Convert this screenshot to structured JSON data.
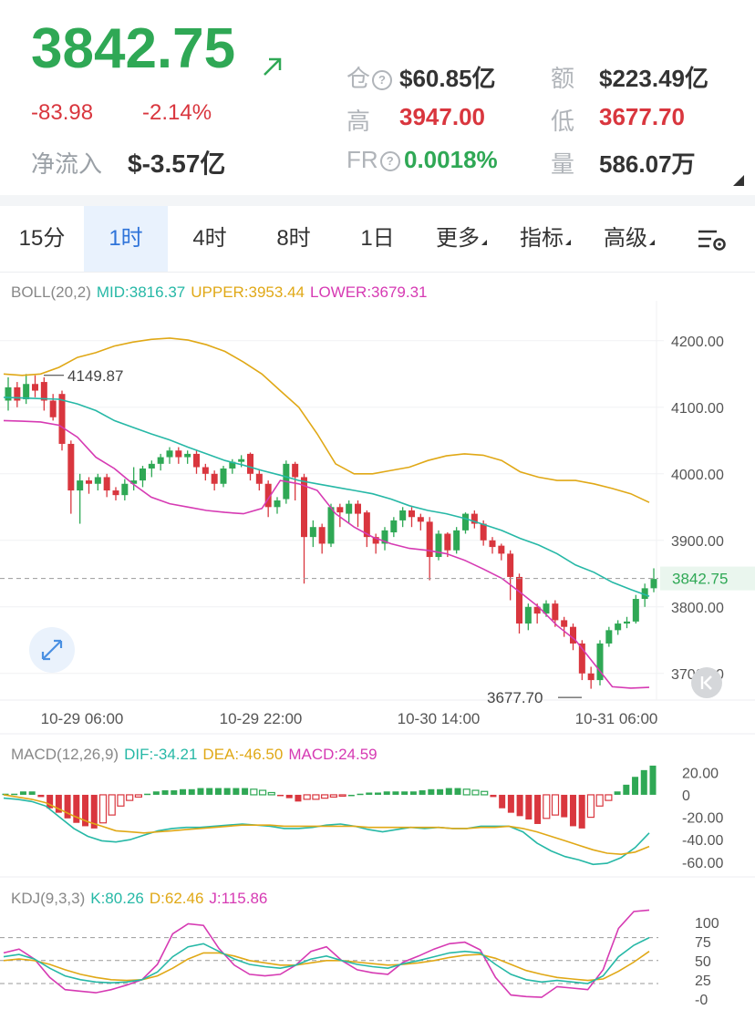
{
  "header": {
    "price": "3842.75",
    "change": "-83.98",
    "change_pct": "-2.14%",
    "net_inflow_label": "净流入",
    "net_inflow_value": "$-3.57亿",
    "stats": {
      "oi_label": "仓",
      "oi_value": "$60.85亿",
      "amount_label": "额",
      "amount_value": "$223.49亿",
      "high_label": "高",
      "high_value": "3947.00",
      "low_label": "低",
      "low_value": "3677.70",
      "fr_label": "FR",
      "fr_value": "0.0018%",
      "volume_label": "量",
      "volume_value": "586.07万"
    },
    "colors": {
      "up": "#2fa855",
      "down": "#d9363e"
    }
  },
  "tabs": [
    {
      "label": "15分"
    },
    {
      "label": "1时",
      "active": true
    },
    {
      "label": "4时"
    },
    {
      "label": "8时"
    },
    {
      "label": "1日"
    },
    {
      "label": "更多"
    },
    {
      "label": "指标"
    },
    {
      "label": "高级"
    }
  ],
  "boll": {
    "name": "BOLL(20,2)",
    "mid": "MID:3816.37",
    "upper": "UPPER:3953.44",
    "lower": "LOWER:3679.31"
  },
  "macd": {
    "name": "MACD(12,26,9)",
    "dif": "DIF:-34.21",
    "dea": "DEA:-46.50",
    "macd": "MACD:24.59"
  },
  "kdj": {
    "name": "KDJ(9,3,3)",
    "k": "K:80.26",
    "d": "D:62.46",
    "j": "J:115.86"
  },
  "chart_data": [
    {
      "type": "candlestick",
      "y_ticks": [
        "4200.00",
        "4100.00",
        "4000.00",
        "3900.00",
        "3800.00",
        "3700.00"
      ],
      "ylim": [
        3660,
        4260
      ],
      "x_ticks": [
        "10-29 06:00",
        "10-29 22:00",
        "10-30 14:00",
        "10-31 06:00"
      ],
      "current_price_label": "3842.75",
      "max_label": "4149.87",
      "min_label": "3677.70",
      "candles": [
        [
          4110,
          4130,
          4095,
          4145
        ],
        [
          4130,
          4110,
          4100,
          4138
        ],
        [
          4112,
          4135,
          4105,
          4150
        ],
        [
          4135,
          4125,
          4115,
          4148
        ],
        [
          4138,
          4110,
          4095,
          4145
        ],
        [
          4110,
          4085,
          4080,
          4120
        ],
        [
          4120,
          4045,
          4035,
          4125
        ],
        [
          4045,
          3975,
          3940,
          4050
        ],
        [
          3975,
          3990,
          3925,
          4000
        ],
        [
          3990,
          3985,
          3970,
          3995
        ],
        [
          3985,
          3995,
          3975,
          4000
        ],
        [
          3995,
          3975,
          3965,
          4000
        ],
        [
          3975,
          3968,
          3960,
          3980
        ],
        [
          3968,
          3985,
          3960,
          3992
        ],
        [
          3985,
          3990,
          3975,
          4010
        ],
        [
          3990,
          4008,
          3980,
          4012
        ],
        [
          4008,
          4015,
          3995,
          4020
        ],
        [
          4015,
          4025,
          4005,
          4030
        ],
        [
          4025,
          4035,
          4015,
          4040
        ],
        [
          4035,
          4025,
          4015,
          4040
        ],
        [
          4025,
          4030,
          4015,
          4035
        ],
        [
          4030,
          4010,
          4000,
          4035
        ],
        [
          4010,
          4000,
          3990,
          4015
        ],
        [
          4000,
          3985,
          3975,
          4005
        ],
        [
          3985,
          4008,
          3980,
          4012
        ],
        [
          4008,
          4018,
          4000,
          4022
        ],
        [
          4018,
          4022,
          4010,
          4028
        ],
        [
          4030,
          4000,
          3990,
          4032
        ],
        [
          4000,
          3985,
          3975,
          4005
        ],
        [
          3985,
          3950,
          3935,
          3990
        ],
        [
          3950,
          3960,
          3940,
          3965
        ],
        [
          3962,
          4015,
          3955,
          4020
        ],
        [
          4015,
          3995,
          3960,
          4018
        ],
        [
          3995,
          3905,
          3835,
          4000
        ],
        [
          3905,
          3920,
          3890,
          3930
        ],
        [
          3920,
          3895,
          3880,
          3925
        ],
        [
          3895,
          3950,
          3890,
          3955
        ],
        [
          3950,
          3942,
          3920,
          3955
        ],
        [
          3940,
          3955,
          3925,
          3960
        ],
        [
          3955,
          3940,
          3920,
          3960
        ],
        [
          3942,
          3905,
          3890,
          3945
        ],
        [
          3905,
          3895,
          3880,
          3910
        ],
        [
          3895,
          3915,
          3885,
          3920
        ],
        [
          3912,
          3930,
          3905,
          3935
        ],
        [
          3930,
          3945,
          3920,
          3950
        ],
        [
          3945,
          3935,
          3920,
          3950
        ],
        [
          3935,
          3928,
          3915,
          3940
        ],
        [
          3928,
          3875,
          3840,
          3935
        ],
        [
          3875,
          3910,
          3870,
          3915
        ],
        [
          3910,
          3885,
          3875,
          3912
        ],
        [
          3885,
          3915,
          3880,
          3920
        ],
        [
          3915,
          3940,
          3910,
          3942
        ],
        [
          3940,
          3925,
          3918,
          3945
        ],
        [
          3925,
          3900,
          3892,
          3930
        ],
        [
          3900,
          3890,
          3880,
          3905
        ],
        [
          3892,
          3880,
          3870,
          3895
        ],
        [
          3880,
          3845,
          3810,
          3885
        ],
        [
          3845,
          3775,
          3760,
          3850
        ],
        [
          3775,
          3800,
          3765,
          3805
        ],
        [
          3800,
          3790,
          3775,
          3805
        ],
        [
          3790,
          3805,
          3785,
          3810
        ],
        [
          3805,
          3780,
          3770,
          3810
        ],
        [
          3780,
          3770,
          3755,
          3785
        ],
        [
          3770,
          3745,
          3735,
          3775
        ],
        [
          3745,
          3700,
          3690,
          3750
        ],
        [
          3700,
          3690,
          3677,
          3710
        ],
        [
          3690,
          3745,
          3682,
          3750
        ],
        [
          3745,
          3765,
          3740,
          3770
        ],
        [
          3765,
          3775,
          3758,
          3780
        ],
        [
          3775,
          3778,
          3768,
          3785
        ],
        [
          3778,
          3812,
          3775,
          3818
        ],
        [
          3812,
          3828,
          3800,
          3835
        ],
        [
          3828,
          3842,
          3822,
          3858
        ]
      ],
      "upper_band": [
        4150,
        4148,
        4150,
        4160,
        4175,
        4182,
        4192,
        4198,
        4202,
        4204,
        4201,
        4194,
        4184,
        4168,
        4150,
        4125,
        4100,
        4060,
        4015,
        4000,
        4000,
        4005,
        4010,
        4020,
        4027,
        4030,
        4028,
        4020,
        4003,
        3995,
        3990,
        3990,
        3985,
        3978,
        3970,
        3957
      ],
      "mid_band": [
        4115,
        4114,
        4113,
        4112,
        4105,
        4095,
        4080,
        4070,
        4060,
        4051,
        4040,
        4030,
        4020,
        4013,
        4005,
        3998,
        3990,
        3985,
        3980,
        3975,
        3970,
        3962,
        3952,
        3945,
        3940,
        3933,
        3924,
        3915,
        3903,
        3893,
        3880,
        3863,
        3852,
        3837,
        3826,
        3816
      ],
      "lower_band": [
        4080,
        4079,
        4078,
        4073,
        4055,
        4025,
        4008,
        3985,
        3965,
        3955,
        3950,
        3945,
        3942,
        3940,
        3948,
        3990,
        3985,
        3975,
        3940,
        3920,
        3905,
        3895,
        3888,
        3885,
        3880,
        3870,
        3857,
        3843,
        3822,
        3800,
        3772,
        3750,
        3715,
        3680,
        3678,
        3679
      ]
    },
    {
      "type": "bar",
      "name": "MACD",
      "y_ticks": [
        "20.00",
        "0",
        "-20.00",
        "-40.00",
        "-60.00"
      ],
      "ylim": [
        -65,
        30
      ],
      "histogram": [
        1,
        1,
        3,
        3,
        -2,
        -12,
        -16,
        -21,
        -25,
        -28,
        -30,
        -25,
        -18,
        -10,
        -5,
        -2,
        1,
        3,
        4,
        4,
        5,
        5,
        6,
        6,
        6,
        6,
        6,
        6,
        5,
        4,
        2,
        -1,
        -3,
        -6,
        -4,
        -4,
        -3,
        -2,
        -1,
        0,
        1,
        2,
        2,
        3,
        3,
        3,
        3,
        4,
        5,
        5,
        6,
        6,
        5,
        4,
        3,
        -2,
        -12,
        -16,
        -19,
        -22,
        -26,
        -21,
        -18,
        -20,
        -28,
        -30,
        -20,
        -10,
        -5,
        3,
        9,
        16,
        22,
        26
      ],
      "dif": [
        -3,
        -4,
        -6,
        -10,
        -20,
        -30,
        -37,
        -41,
        -42,
        -40,
        -36,
        -32,
        -30,
        -29,
        -29,
        -28,
        -27,
        -26,
        -27,
        -28,
        -30,
        -30,
        -29,
        -27,
        -26,
        -28,
        -31,
        -33,
        -31,
        -29,
        -30,
        -29,
        -30,
        -30,
        -28,
        -28,
        -28,
        -33,
        -43,
        -50,
        -55,
        -58,
        -62,
        -61,
        -56,
        -47,
        -34
      ],
      "dea": [
        0,
        -2,
        -4,
        -7,
        -13,
        -19,
        -24,
        -28,
        -32,
        -33,
        -34,
        -33,
        -32,
        -31,
        -30,
        -29,
        -28,
        -27,
        -27,
        -27,
        -28,
        -28,
        -28,
        -28,
        -28,
        -28,
        -29,
        -29,
        -29,
        -29,
        -29,
        -29,
        -30,
        -30,
        -29,
        -29,
        -28,
        -30,
        -33,
        -37,
        -41,
        -45,
        -49,
        -52,
        -53,
        -51,
        -46
      ]
    },
    {
      "type": "line",
      "name": "KDJ",
      "y_ticks": [
        "100",
        "75",
        "50",
        "25",
        "-0"
      ],
      "ylim": [
        -5,
        120
      ],
      "k": [
        55,
        58,
        52,
        40,
        30,
        25,
        22,
        21,
        22,
        25,
        35,
        55,
        68,
        72,
        62,
        52,
        45,
        42,
        40,
        44,
        52,
        56,
        50,
        45,
        42,
        40,
        46,
        50,
        55,
        60,
        62,
        60,
        45,
        32,
        25,
        22,
        24,
        22,
        20,
        30,
        55,
        70,
        80
      ],
      "d": [
        50,
        52,
        50,
        45,
        38,
        32,
        28,
        25,
        24,
        25,
        30,
        40,
        52,
        60,
        60,
        56,
        50,
        47,
        44,
        44,
        47,
        50,
        50,
        48,
        46,
        44,
        45,
        47,
        50,
        54,
        57,
        58,
        53,
        45,
        37,
        32,
        28,
        26,
        24,
        26,
        36,
        48,
        62
      ],
      "j": [
        60,
        65,
        52,
        28,
        12,
        10,
        8,
        12,
        18,
        25,
        45,
        85,
        98,
        96,
        66,
        44,
        32,
        30,
        32,
        44,
        62,
        68,
        50,
        38,
        34,
        32,
        48,
        56,
        65,
        72,
        74,
        64,
        28,
        5,
        3,
        2,
        16,
        14,
        12,
        38,
        92,
        114,
        116
      ]
    }
  ]
}
